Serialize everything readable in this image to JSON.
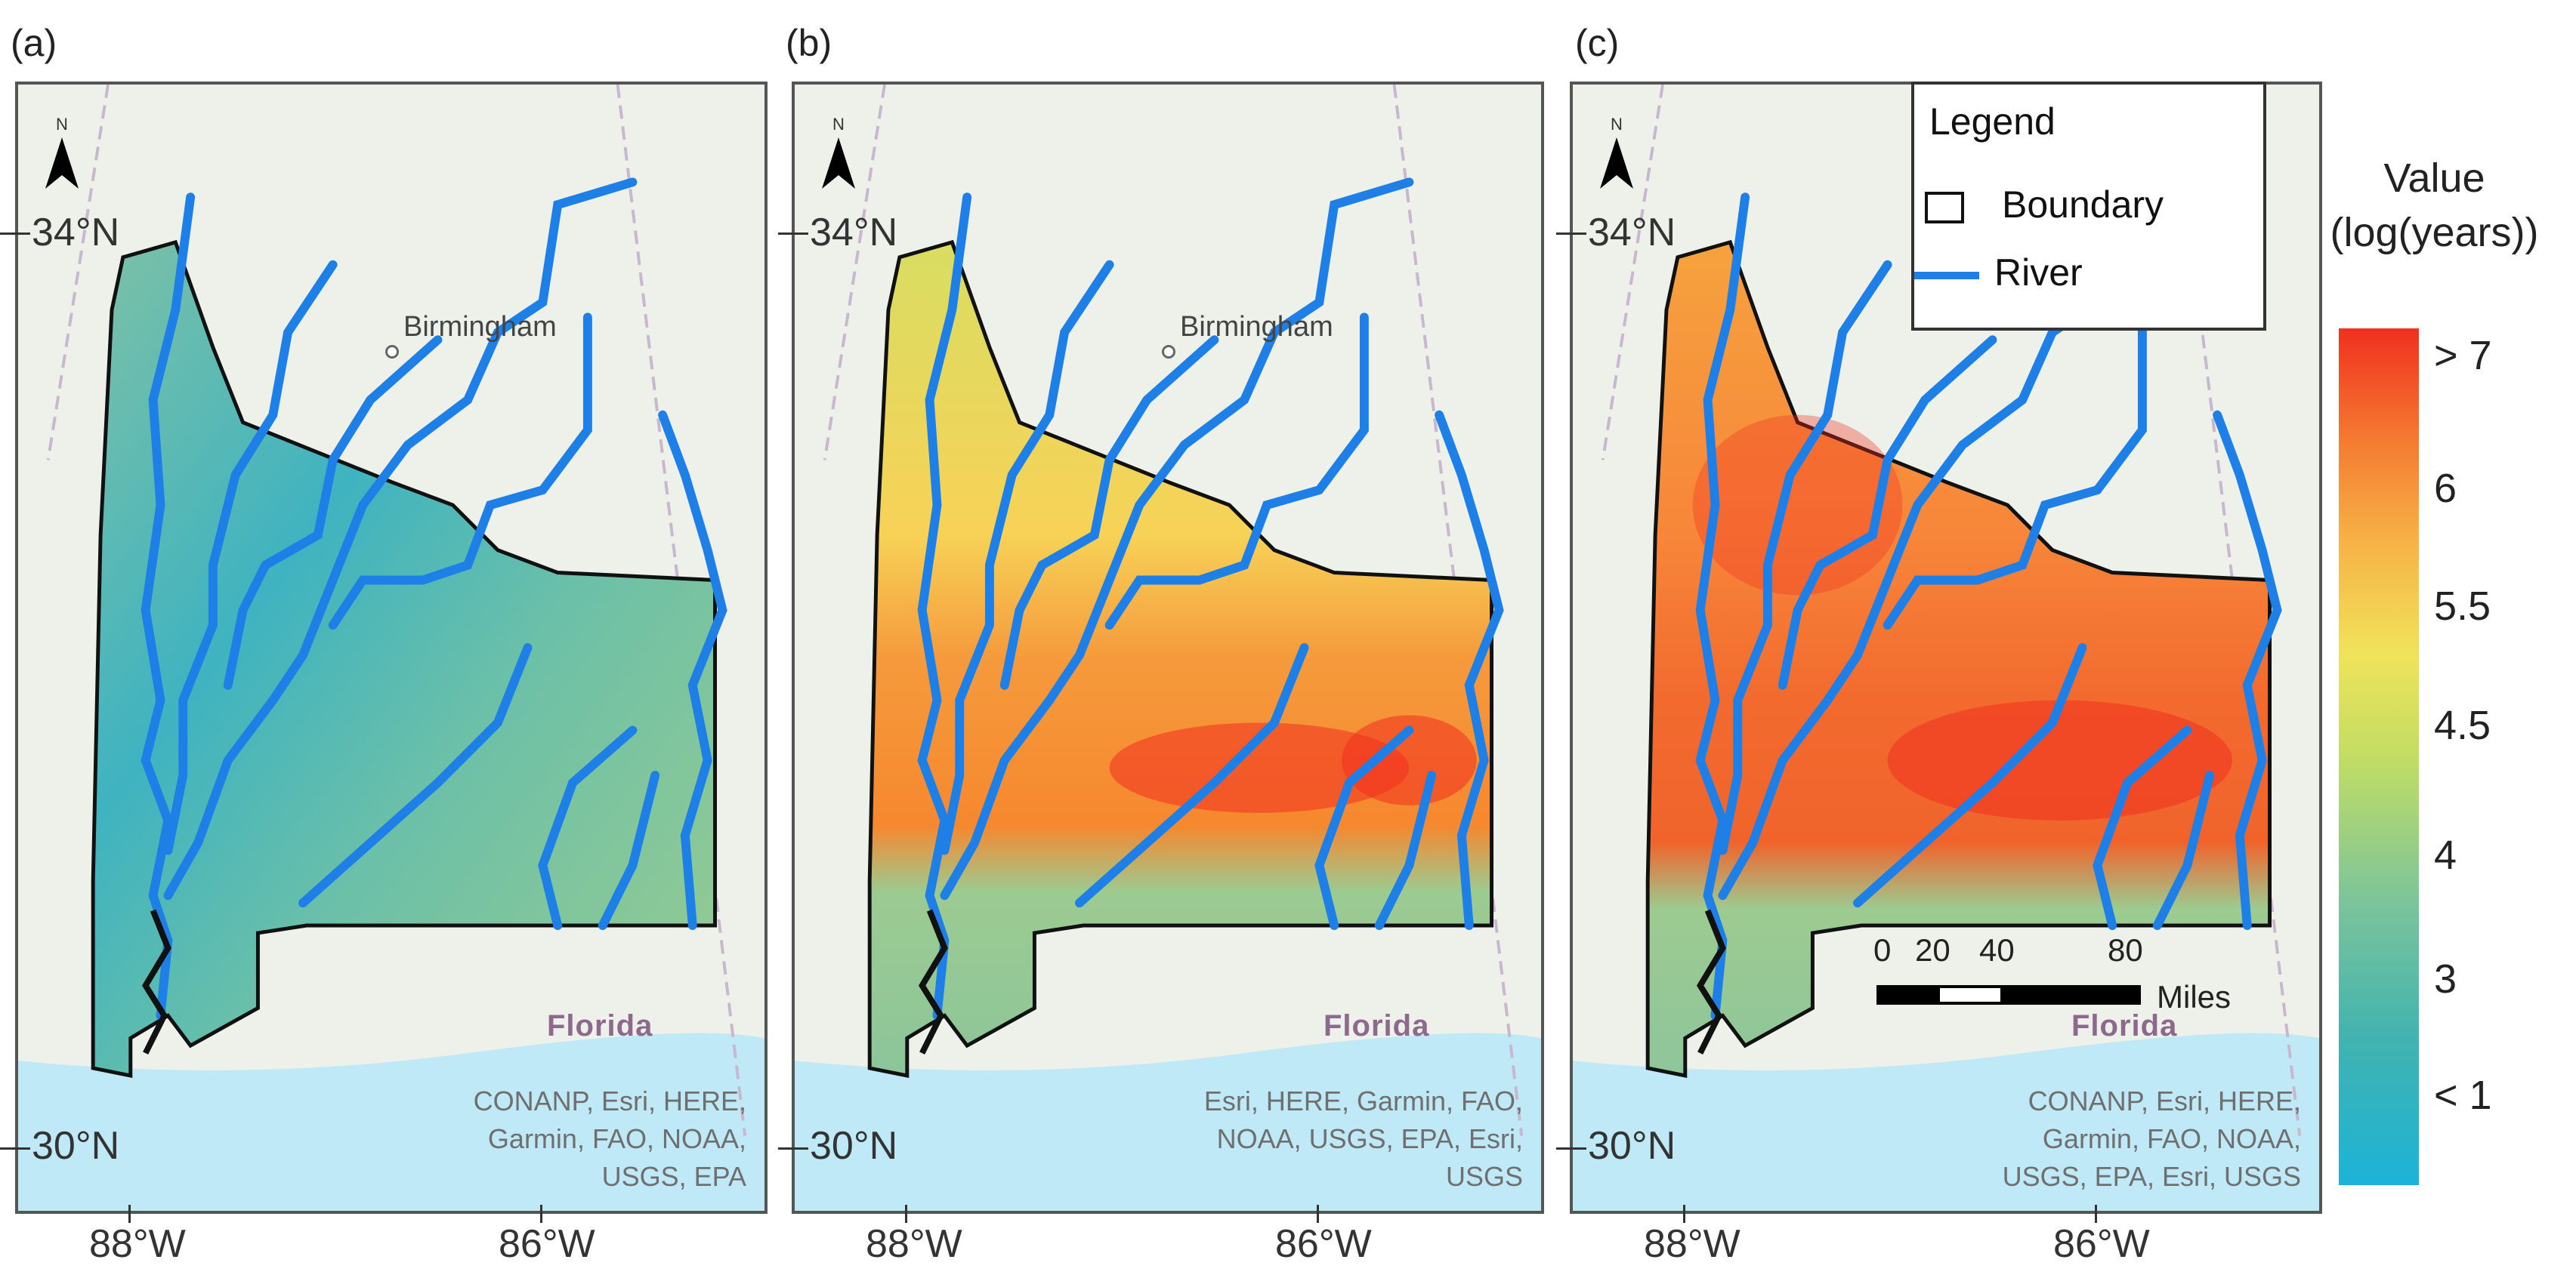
{
  "panels": [
    {
      "letter": "(a)",
      "city": "Birmingham",
      "state": "Florida",
      "lat_top": "34°N",
      "lat_bottom": "30°N",
      "lon_left": "88°W",
      "lon_right": "86°W",
      "attribution": [
        "CONANP, Esri, HERE,",
        "Garmin, FAO, NOAA,",
        "USGS, EPA"
      ]
    },
    {
      "letter": "(b)",
      "city": "Birmingham",
      "state": "Florida",
      "lat_top": "34°N",
      "lat_bottom": "30°N",
      "lon_left": "88°W",
      "lon_right": "86°W",
      "attribution": [
        "Esri, HERE, Garmin, FAO,",
        "NOAA, USGS, EPA, Esri,",
        "USGS"
      ]
    },
    {
      "letter": "(c)",
      "city": "",
      "state": "Florida",
      "lat_top": "34°N",
      "lat_bottom": "30°N",
      "lon_left": "88°W",
      "lon_right": "86°W",
      "attribution": [
        "CONANP, Esri, HERE,",
        "Garmin, FAO, NOAA,",
        "USGS, EPA, Esri, USGS"
      ]
    }
  ],
  "north_arrow": "N",
  "legend": {
    "title": "Legend",
    "boundary_label": "Boundary",
    "river_label": "River"
  },
  "scalebar": {
    "ticks": [
      "0",
      "20",
      "40",
      "80"
    ],
    "unit": "Miles"
  },
  "colorbar": {
    "title_line1": "Value",
    "title_line2": "(log(years))",
    "ticks": [
      "> 7",
      "6",
      "5.5",
      "4.5",
      "4",
      "3",
      "< 1"
    ],
    "colors": {
      "low": "#1cb3d8",
      "mid": "#c2dd63",
      "high": "#f0301f"
    }
  },
  "colors": {
    "river": "#1e7fe6",
    "boundary": "#111111",
    "water": "#bfe9f6",
    "land": "#eef1ea"
  }
}
